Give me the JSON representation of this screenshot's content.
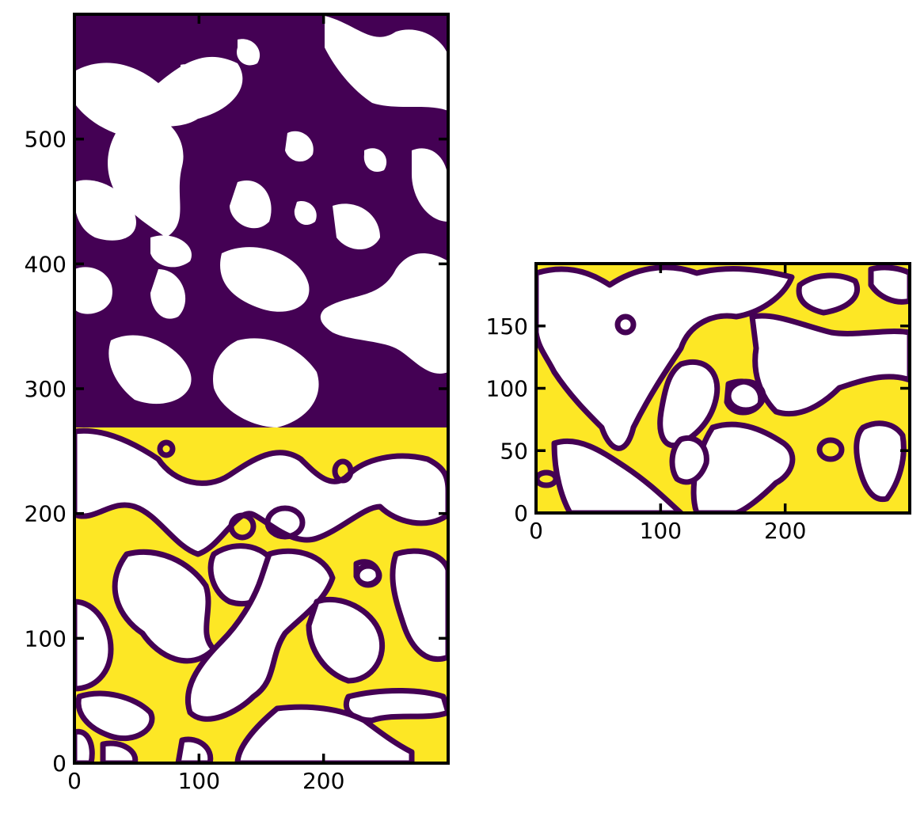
{
  "colors": {
    "purple": "#440154",
    "yellow": "#fde725",
    "white": "#ffffff",
    "axes": "#000000"
  },
  "chart_data": [
    {
      "type": "heatmap",
      "title": "",
      "xlabel": "",
      "ylabel": "",
      "xlim": [
        0,
        300
      ],
      "ylim": [
        0,
        600
      ],
      "x_ticks": [
        0,
        100,
        200
      ],
      "x_tick_labels": [
        "0",
        "100",
        "200"
      ],
      "y_ticks": [
        0,
        100,
        200,
        300,
        400,
        500
      ],
      "y_tick_labels": [
        "0",
        "100",
        "200",
        "300",
        "400",
        "500"
      ],
      "grid": false,
      "colormap": "viridis",
      "regions": [
        {
          "name": "purple",
          "y_range": [
            270,
            600
          ]
        },
        {
          "name": "yellow",
          "y_range": [
            0,
            270
          ]
        }
      ]
    },
    {
      "type": "heatmap",
      "title": "",
      "xlabel": "",
      "ylabel": "",
      "xlim": [
        0,
        300
      ],
      "ylim": [
        0,
        200
      ],
      "x_ticks": [
        0,
        100,
        200
      ],
      "x_tick_labels": [
        "0",
        "100",
        "200"
      ],
      "y_ticks": [
        0,
        50,
        100,
        150
      ],
      "y_tick_labels": [
        "0",
        "50",
        "100",
        "150"
      ],
      "grid": false,
      "colormap": "viridis",
      "regions": [
        {
          "name": "yellow",
          "y_range": [
            0,
            200
          ]
        }
      ]
    }
  ]
}
